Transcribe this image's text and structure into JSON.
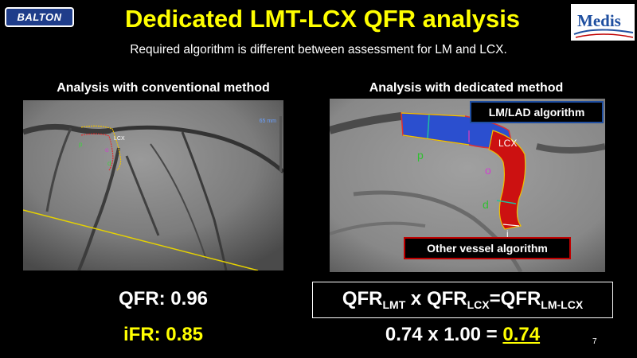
{
  "header": {
    "balton_logo_text": "BALTON",
    "title": "Dedicated LMT-LCX QFR analysis",
    "medis_logo_text": "Medis"
  },
  "subtitle": "Required algorithm is different between assessment for LM and LCX.",
  "left_panel": {
    "title": "Analysis with conventional method",
    "image_labels": {
      "ruler": "65 mm",
      "lcx": "LCX",
      "p": "p",
      "o": "o",
      "d": "d"
    }
  },
  "right_panel": {
    "title": "Analysis with dedicated method",
    "lm_lad_label": "LM/LAD algorithm",
    "other_vessel_label": "Other vessel algorithm",
    "image_labels": {
      "lcx": "LCX",
      "p": "p",
      "o": "o",
      "d": "d",
      "i": "i"
    }
  },
  "results": {
    "qfr": "QFR: 0.96",
    "ifr": "iFR: 0.85",
    "formula": {
      "a": "QFR",
      "a_sub": "LMT",
      "op1": " x ",
      "b": "QFR",
      "b_sub": "LCX",
      "eq": "=",
      "c": "QFR",
      "c_sub": "LM-LCX"
    },
    "calc": {
      "expr": "0.74 x 1.00 = ",
      "result": "0.74"
    }
  },
  "slide_number": "7",
  "colors": {
    "title": "#ffff00",
    "lm_lad": "#1f4ea0",
    "other_vessel": "#c00000"
  }
}
